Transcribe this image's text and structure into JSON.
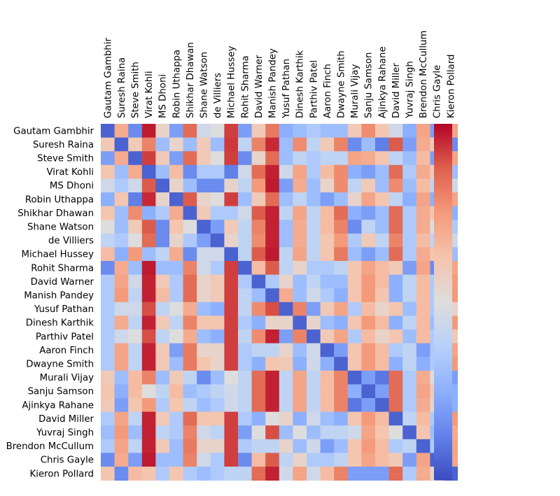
{
  "chart_data": {
    "type": "heatmap",
    "title": "",
    "xlabel": "",
    "ylabel": "",
    "labels": [
      "Gautam Gambhir",
      "Suresh Raina",
      "Steve Smith",
      "Virat Kohli",
      "MS Dhoni",
      "Robin Uthappa",
      "Shikhar Dhawan",
      "Shane Watson",
      "de Villiers",
      "Michael Hussey",
      "Rohit Sharma",
      "David Warner",
      "Manish Pandey",
      "Yusuf Pathan",
      "Dinesh Karthik",
      "Parthiv Patel",
      "Aaron Finch",
      "Dwayne Smith",
      "Murali Vijay",
      "Sanju Samson",
      "Ajinkya Rahane",
      "David Miller",
      "Yuvraj Singh",
      "Brendon McCullum",
      "Chris Gayle",
      "Kieron Pollard"
    ],
    "value_range": [
      0,
      1
    ],
    "colormap": "coolwarm",
    "colorbar": true,
    "values": [
      [
        0.05,
        0.7,
        0.15,
        0.97,
        0.55,
        0.2,
        0.85,
        0.45,
        0.5,
        0.92,
        0.2,
        0.6,
        0.82,
        0.25,
        0.3,
        0.35,
        0.3,
        0.3,
        0.6,
        0.78,
        0.62,
        0.45,
        0.25,
        0.72,
        0.2,
        0.72
      ],
      [
        0.6,
        0.05,
        0.6,
        0.8,
        0.3,
        0.55,
        0.3,
        0.6,
        0.3,
        0.93,
        0.4,
        0.8,
        0.95,
        0.3,
        0.78,
        0.4,
        0.6,
        0.8,
        0.15,
        0.3,
        0.12,
        0.88,
        0.2,
        0.7,
        0.6,
        0.15
      ],
      [
        0.2,
        0.7,
        0.05,
        0.92,
        0.6,
        0.2,
        0.85,
        0.6,
        0.5,
        0.92,
        0.15,
        0.55,
        0.85,
        0.3,
        0.4,
        0.35,
        0.4,
        0.4,
        0.72,
        0.7,
        0.62,
        0.4,
        0.3,
        0.65,
        0.2,
        0.72
      ],
      [
        0.62,
        0.3,
        0.7,
        0.05,
        0.3,
        0.65,
        0.15,
        0.35,
        0.35,
        0.12,
        0.45,
        0.85,
        0.96,
        0.45,
        0.72,
        0.35,
        0.65,
        0.78,
        0.25,
        0.2,
        0.3,
        0.85,
        0.35,
        0.7,
        0.6,
        0.3
      ],
      [
        0.45,
        0.35,
        0.45,
        0.88,
        0.05,
        0.55,
        0.3,
        0.15,
        0.15,
        0.55,
        0.4,
        0.75,
        0.97,
        0.2,
        0.7,
        0.3,
        0.55,
        0.78,
        0.4,
        0.6,
        0.3,
        0.78,
        0.3,
        0.65,
        0.4,
        0.45
      ],
      [
        0.25,
        0.62,
        0.12,
        0.95,
        0.55,
        0.05,
        0.88,
        0.55,
        0.5,
        0.92,
        0.3,
        0.6,
        0.85,
        0.3,
        0.4,
        0.3,
        0.2,
        0.3,
        0.55,
        0.72,
        0.62,
        0.4,
        0.25,
        0.72,
        0.25,
        0.72
      ],
      [
        0.62,
        0.3,
        0.78,
        0.25,
        0.35,
        0.7,
        0.05,
        0.6,
        0.35,
        0.35,
        0.45,
        0.88,
        0.96,
        0.4,
        0.72,
        0.4,
        0.65,
        0.85,
        0.25,
        0.2,
        0.3,
        0.85,
        0.35,
        0.7,
        0.62,
        0.25
      ],
      [
        0.5,
        0.3,
        0.6,
        0.88,
        0.15,
        0.62,
        0.5,
        0.05,
        0.2,
        0.6,
        0.4,
        0.8,
        0.96,
        0.3,
        0.7,
        0.4,
        0.65,
        0.8,
        0.15,
        0.4,
        0.3,
        0.85,
        0.35,
        0.7,
        0.5,
        0.35
      ],
      [
        0.4,
        0.35,
        0.5,
        0.85,
        0.15,
        0.55,
        0.35,
        0.2,
        0.05,
        0.55,
        0.4,
        0.78,
        0.96,
        0.3,
        0.7,
        0.4,
        0.62,
        0.75,
        0.35,
        0.6,
        0.4,
        0.8,
        0.35,
        0.65,
        0.4,
        0.45
      ],
      [
        0.65,
        0.25,
        0.75,
        0.3,
        0.4,
        0.7,
        0.15,
        0.45,
        0.45,
        0.05,
        0.4,
        0.88,
        0.97,
        0.4,
        0.72,
        0.4,
        0.62,
        0.82,
        0.3,
        0.2,
        0.3,
        0.85,
        0.35,
        0.7,
        0.62,
        0.3
      ],
      [
        0.15,
        0.7,
        0.3,
        0.97,
        0.3,
        0.3,
        0.8,
        0.45,
        0.35,
        0.92,
        0.05,
        0.65,
        0.88,
        0.4,
        0.55,
        0.35,
        0.35,
        0.4,
        0.62,
        0.72,
        0.65,
        0.6,
        0.2,
        0.72,
        0.15,
        0.72
      ],
      [
        0.35,
        0.72,
        0.45,
        0.96,
        0.6,
        0.35,
        0.85,
        0.55,
        0.6,
        0.92,
        0.35,
        0.05,
        0.35,
        0.55,
        0.3,
        0.4,
        0.3,
        0.3,
        0.62,
        0.75,
        0.65,
        0.25,
        0.4,
        0.65,
        0.35,
        0.75
      ],
      [
        0.35,
        0.75,
        0.4,
        0.96,
        0.65,
        0.35,
        0.85,
        0.55,
        0.6,
        0.92,
        0.4,
        0.3,
        0.05,
        0.7,
        0.3,
        0.45,
        0.35,
        0.25,
        0.62,
        0.75,
        0.62,
        0.25,
        0.4,
        0.65,
        0.35,
        0.75
      ],
      [
        0.35,
        0.45,
        0.45,
        0.9,
        0.4,
        0.5,
        0.7,
        0.3,
        0.25,
        0.92,
        0.4,
        0.78,
        0.9,
        0.05,
        0.8,
        0.2,
        0.6,
        0.72,
        0.35,
        0.65,
        0.55,
        0.62,
        0.3,
        0.65,
        0.35,
        0.55
      ],
      [
        0.35,
        0.7,
        0.4,
        0.96,
        0.6,
        0.4,
        0.8,
        0.62,
        0.62,
        0.92,
        0.35,
        0.25,
        0.55,
        0.55,
        0.05,
        0.55,
        0.3,
        0.25,
        0.62,
        0.75,
        0.65,
        0.25,
        0.4,
        0.65,
        0.3,
        0.75
      ],
      [
        0.35,
        0.45,
        0.5,
        0.9,
        0.4,
        0.5,
        0.7,
        0.3,
        0.25,
        0.92,
        0.4,
        0.78,
        0.96,
        0.2,
        0.8,
        0.05,
        0.6,
        0.72,
        0.35,
        0.65,
        0.55,
        0.62,
        0.3,
        0.65,
        0.35,
        0.6
      ],
      [
        0.35,
        0.72,
        0.4,
        0.96,
        0.6,
        0.2,
        0.82,
        0.55,
        0.55,
        0.92,
        0.35,
        0.4,
        0.4,
        0.55,
        0.3,
        0.45,
        0.05,
        0.2,
        0.62,
        0.75,
        0.65,
        0.35,
        0.4,
        0.2,
        0.35,
        0.72
      ],
      [
        0.35,
        0.72,
        0.4,
        0.96,
        0.6,
        0.3,
        0.82,
        0.62,
        0.55,
        0.92,
        0.35,
        0.25,
        0.62,
        0.6,
        0.25,
        0.45,
        0.25,
        0.05,
        0.62,
        0.75,
        0.65,
        0.25,
        0.4,
        0.25,
        0.35,
        0.75
      ],
      [
        0.6,
        0.3,
        0.65,
        0.8,
        0.3,
        0.6,
        0.4,
        0.15,
        0.3,
        0.5,
        0.4,
        0.85,
        0.96,
        0.4,
        0.72,
        0.4,
        0.65,
        0.8,
        0.05,
        0.2,
        0.1,
        0.85,
        0.35,
        0.7,
        0.5,
        0.2
      ],
      [
        0.62,
        0.25,
        0.65,
        0.5,
        0.4,
        0.65,
        0.3,
        0.35,
        0.4,
        0.45,
        0.4,
        0.85,
        0.96,
        0.4,
        0.72,
        0.4,
        0.65,
        0.8,
        0.25,
        0.05,
        0.2,
        0.85,
        0.35,
        0.72,
        0.6,
        0.25
      ],
      [
        0.6,
        0.2,
        0.62,
        0.75,
        0.35,
        0.62,
        0.4,
        0.3,
        0.35,
        0.45,
        0.4,
        0.85,
        0.96,
        0.4,
        0.72,
        0.4,
        0.65,
        0.8,
        0.1,
        0.2,
        0.05,
        0.85,
        0.35,
        0.7,
        0.55,
        0.25
      ],
      [
        0.35,
        0.72,
        0.4,
        0.96,
        0.6,
        0.35,
        0.85,
        0.62,
        0.62,
        0.92,
        0.35,
        0.25,
        0.5,
        0.55,
        0.25,
        0.45,
        0.3,
        0.25,
        0.62,
        0.75,
        0.65,
        0.05,
        0.4,
        0.65,
        0.35,
        0.75
      ],
      [
        0.3,
        0.75,
        0.3,
        0.96,
        0.4,
        0.35,
        0.8,
        0.45,
        0.4,
        0.92,
        0.2,
        0.5,
        0.9,
        0.3,
        0.5,
        0.3,
        0.4,
        0.4,
        0.45,
        0.72,
        0.62,
        0.5,
        0.05,
        0.62,
        0.3,
        0.7
      ],
      [
        0.35,
        0.72,
        0.4,
        0.96,
        0.6,
        0.3,
        0.82,
        0.55,
        0.55,
        0.92,
        0.35,
        0.4,
        0.4,
        0.55,
        0.3,
        0.45,
        0.2,
        0.3,
        0.62,
        0.75,
        0.65,
        0.35,
        0.4,
        0.05,
        0.35,
        0.72
      ],
      [
        0.15,
        0.7,
        0.2,
        0.97,
        0.3,
        0.3,
        0.8,
        0.45,
        0.35,
        0.92,
        0.15,
        0.65,
        0.88,
        0.4,
        0.55,
        0.35,
        0.35,
        0.4,
        0.62,
        0.72,
        0.65,
        0.6,
        0.2,
        0.72,
        0.05,
        0.72
      ],
      [
        0.62,
        0.15,
        0.65,
        0.62,
        0.35,
        0.62,
        0.35,
        0.3,
        0.35,
        0.4,
        0.4,
        0.85,
        0.96,
        0.45,
        0.72,
        0.45,
        0.65,
        0.8,
        0.2,
        0.2,
        0.2,
        0.85,
        0.35,
        0.7,
        0.55,
        0.05
      ]
    ]
  }
}
